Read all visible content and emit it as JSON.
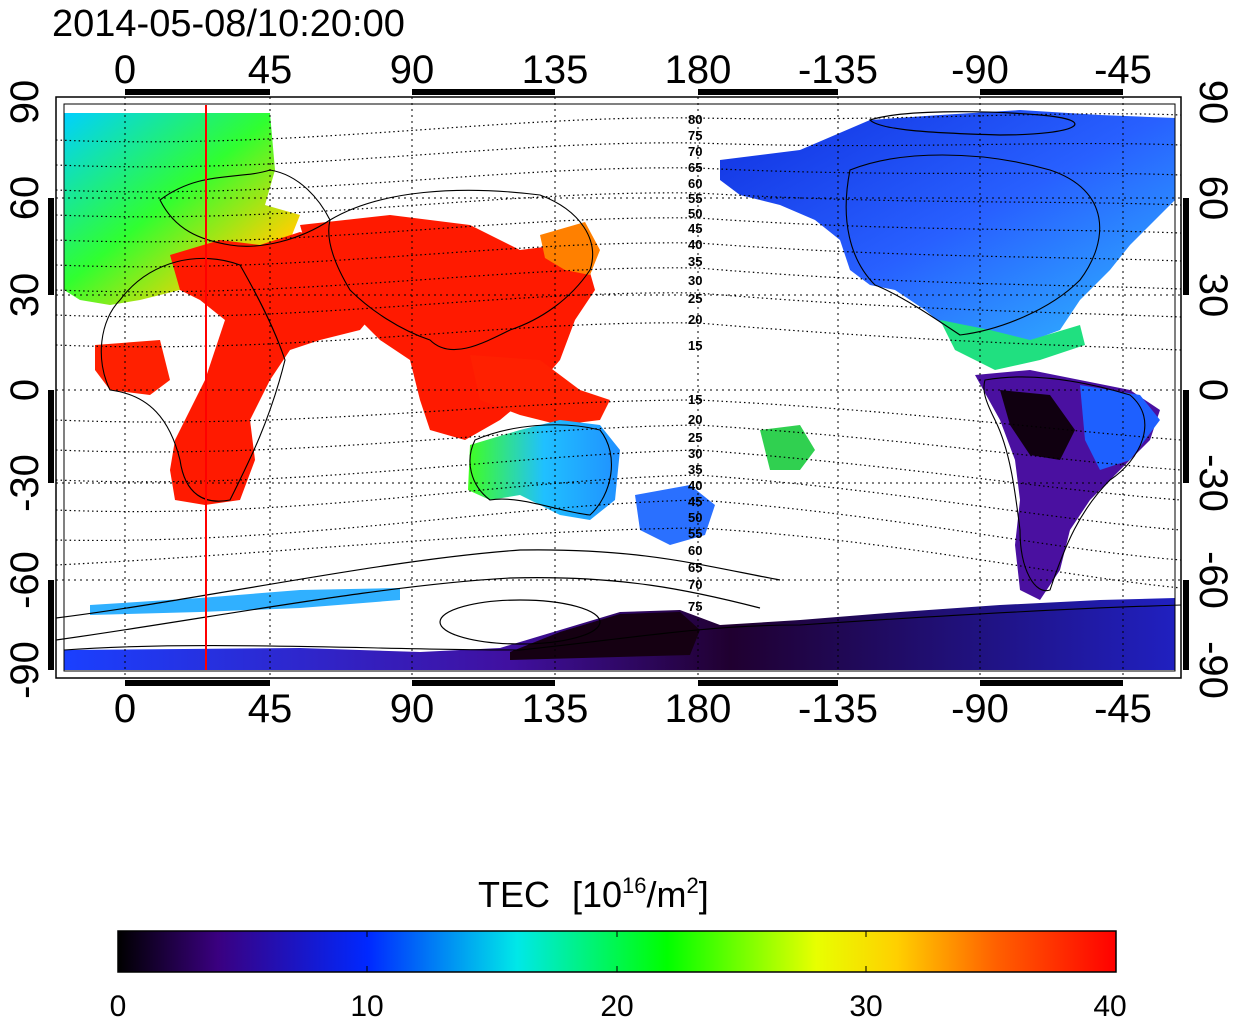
{
  "title": "2014-05-08/10:20:00",
  "map": {
    "lon_tick_labels": [
      "0",
      "45",
      "90",
      "135",
      "180",
      "-135",
      "-90",
      "-45"
    ],
    "lat_tick_labels": [
      "90",
      "60",
      "30",
      "0",
      "-30",
      "-60",
      "-90"
    ],
    "lon_range": [
      -20,
      340
    ],
    "lat_range": [
      -90,
      90
    ],
    "grid": true,
    "marker_line_lon": 25,
    "marker_line_color": "#ff0000",
    "contour_labels_north": [
      "80",
      "75",
      "70",
      "65",
      "60",
      "55",
      "50",
      "45",
      "40",
      "35",
      "30",
      "25",
      "20",
      "15"
    ],
    "contour_labels_south": [
      "15",
      "20",
      "25",
      "30",
      "35",
      "40",
      "45",
      "50",
      "55",
      "60",
      "65",
      "70",
      "75"
    ]
  },
  "colorbar": {
    "label": "TEC",
    "unit_open": "[10",
    "unit_sup1": "16",
    "unit_mid": "/m",
    "unit_sup2": "2",
    "unit_close": "]",
    "tick_labels": [
      "0",
      "10",
      "20",
      "30",
      "40"
    ],
    "min": 0,
    "max": 40
  },
  "colors": {
    "low": "#000000",
    "mid_low": "#3a0080",
    "blue": "#0028ff",
    "cyan": "#00e8e8",
    "green": "#00ff00",
    "yellow": "#ffff00",
    "orange": "#ff8000",
    "high": "#ff0000"
  }
}
